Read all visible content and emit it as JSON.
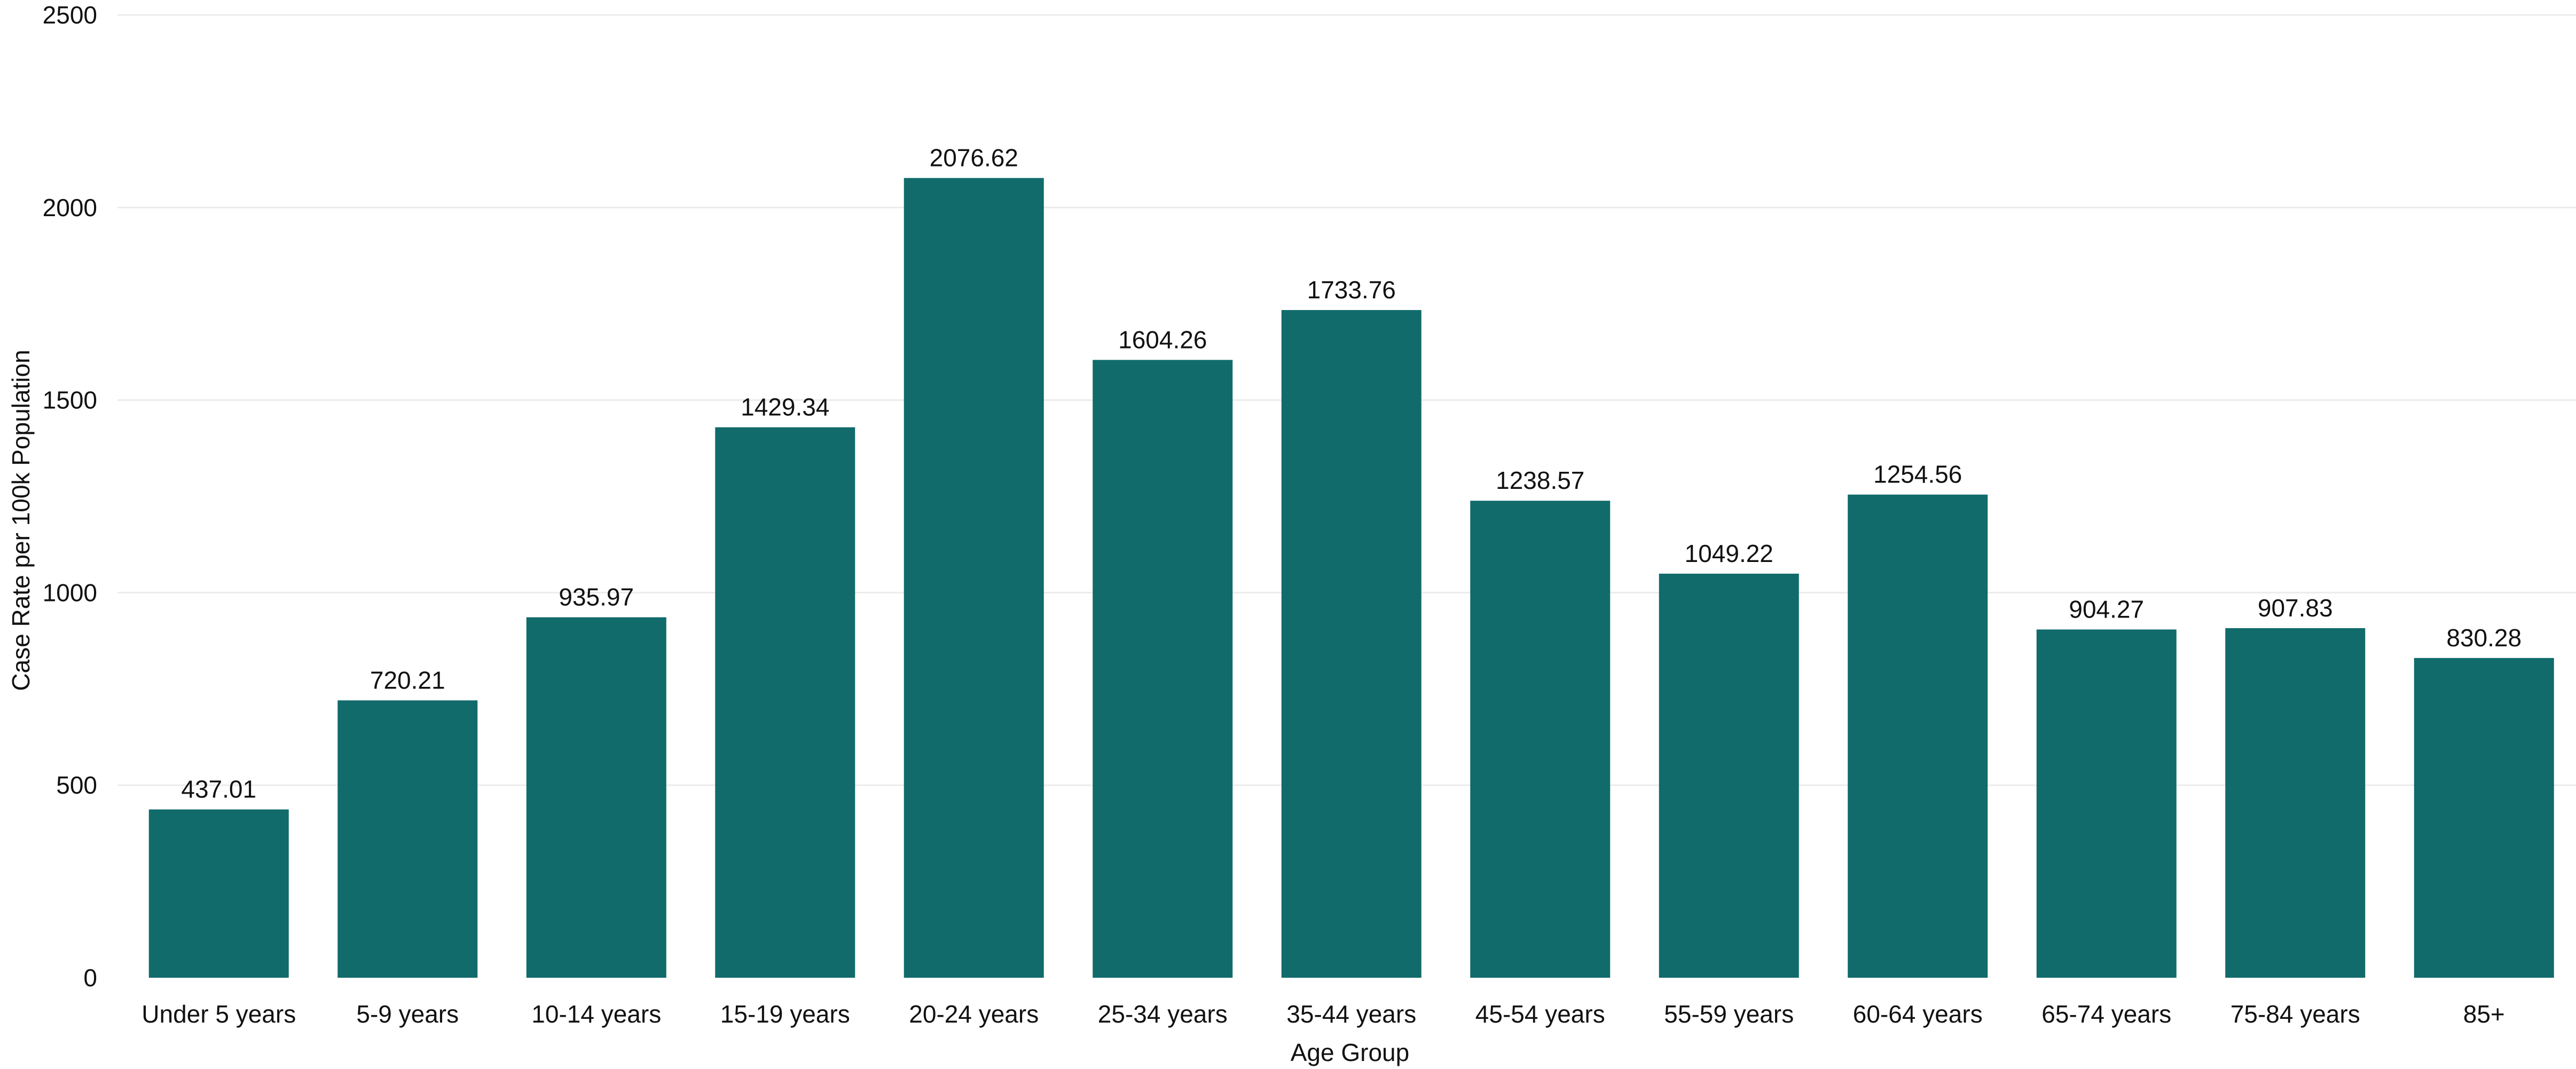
{
  "chart_data": {
    "type": "bar",
    "title": "",
    "xlabel": "Age Group",
    "ylabel": "Case Rate per 100k Population",
    "ylim": [
      0,
      2500
    ],
    "yticks": [
      0,
      500,
      1000,
      1500,
      2000,
      2500
    ],
    "grid": true,
    "legend": "none",
    "bar_color": "#116b6b",
    "categories": [
      "Under 5 years",
      "5-9 years",
      "10-14 years",
      "15-19 years",
      "20-24 years",
      "25-34 years",
      "35-44 years",
      "45-54 years",
      "55-59 years",
      "60-64 years",
      "65-74 years",
      "75-84 years",
      "85+"
    ],
    "values": [
      437.01,
      720.21,
      935.97,
      1429.34,
      2076.62,
      1604.26,
      1733.76,
      1238.57,
      1049.22,
      1254.56,
      904.27,
      907.83,
      830.28
    ],
    "data_labels": [
      "437.01",
      "720.21",
      "935.97",
      "1429.34",
      "2076.62",
      "1604.26",
      "1733.76",
      "1238.57",
      "1049.22",
      "1254.56",
      "904.27",
      "907.83",
      "830.28"
    ]
  }
}
